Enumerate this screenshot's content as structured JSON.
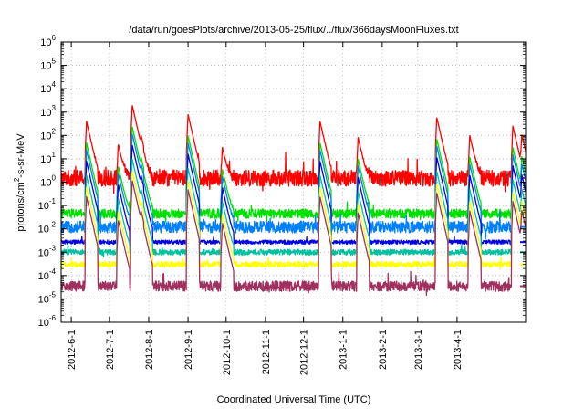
{
  "chart_data": {
    "type": "line",
    "title": "/data/run/goesPlots/archive/2013-05-25/flux/../flux/366daysMoonFluxes.txt",
    "xlabel": "Coordinated Universal Time (UTC)",
    "ylabel": {
      "base": "protons/cm",
      "sup": "2",
      "rest": "-s-sr-MeV"
    },
    "x_range": [
      "2012-05-24",
      "2013-05-25"
    ],
    "y_scale": "log",
    "ylim": [
      1e-06,
      1000000.0
    ],
    "x_ticks": [
      "2012-6-1",
      "2012-7-1",
      "2012-8-1",
      "2012-9-1",
      "2012-10-1",
      "2012-11-1",
      "2012-12-1",
      "2013-1-1",
      "2013-2-1",
      "2013-3-1",
      "2013-4-1"
    ],
    "y_ticks": [
      {
        "base": "10",
        "exp": "-6"
      },
      {
        "base": "10",
        "exp": "-5"
      },
      {
        "base": "10",
        "exp": "-4"
      },
      {
        "base": "10",
        "exp": "-3"
      },
      {
        "base": "10",
        "exp": "-2"
      },
      {
        "base": "10",
        "exp": "-1"
      },
      {
        "base": "10",
        "exp": "0"
      },
      {
        "base": "10",
        "exp": "1"
      },
      {
        "base": "10",
        "exp": "2"
      },
      {
        "base": "10",
        "exp": "3"
      },
      {
        "base": "10",
        "exp": "4"
      },
      {
        "base": "10",
        "exp": "5"
      },
      {
        "base": "10",
        "exp": "6"
      }
    ],
    "grid": true,
    "legend": "none",
    "events": [
      {
        "date": "2012-06-13",
        "peak": 400
      },
      {
        "date": "2012-07-08",
        "peak": 40
      },
      {
        "date": "2012-07-19",
        "peak": 2000
      },
      {
        "date": "2012-07-26",
        "peak": 60
      },
      {
        "date": "2012-09-01",
        "peak": 800
      },
      {
        "date": "2012-09-28",
        "peak": 30
      },
      {
        "date": "2012-12-14",
        "peak": 400
      },
      {
        "date": "2013-01-13",
        "peak": 80
      },
      {
        "date": "2013-03-16",
        "peak": 600
      },
      {
        "date": "2013-04-11",
        "peak": 100
      },
      {
        "date": "2013-05-15",
        "peak": 250
      },
      {
        "date": "2013-05-22",
        "peak": 100
      }
    ],
    "series": [
      {
        "color": "#ff0000",
        "baseline": 1.5,
        "noise": 0.35,
        "event_scale": 1.0,
        "floor": 0.08
      },
      {
        "color": "#00e000",
        "baseline": 0.045,
        "noise": 0.2,
        "event_scale": 0.12,
        "floor": 0.02
      },
      {
        "color": "#0080ff",
        "baseline": 0.012,
        "noise": 0.25,
        "event_scale": 0.06,
        "floor": 0.003
      },
      {
        "color": "#0000ee",
        "baseline": 0.0027,
        "noise": 0.09,
        "event_scale": 0.02,
        "floor": 0.0015
      },
      {
        "color": "#00c0a0",
        "baseline": 0.001,
        "noise": 0.12,
        "event_scale": 0.005,
        "floor": 0.0006
      },
      {
        "color": "#ffff00",
        "baseline": 0.0003,
        "noise": 0.12,
        "event_scale": 0.0015,
        "floor": 0.00018
      },
      {
        "color": "#a03060",
        "baseline": 3.5e-05,
        "noise": 0.22,
        "event_scale": 0.0006,
        "floor": 8e-06
      }
    ]
  }
}
